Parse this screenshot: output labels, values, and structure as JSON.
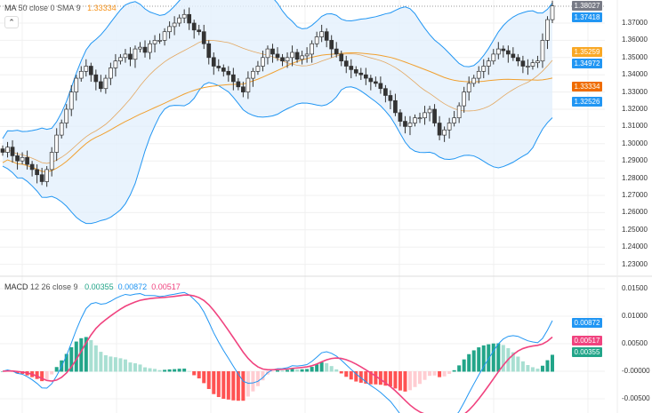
{
  "main_legend": {
    "label": "MA",
    "params": "50 close 0 SMA 9",
    "value": "1.33334",
    "value_color": "#f7931a"
  },
  "collapse_icon": "chevron-up-icon",
  "macd_legend": {
    "label": "MACD",
    "params": "12 26 close 9",
    "hist": "0.00355",
    "macd": "0.00872",
    "signal": "0.00517"
  },
  "price_axis": [
    "1.37000",
    "1.36000",
    "1.35000",
    "1.34000",
    "1.33000",
    "1.32000",
    "1.31000",
    "1.30000",
    "1.29000",
    "1.28000",
    "1.27000",
    "1.26000",
    "1.25000",
    "1.24000",
    "1.23000"
  ],
  "macd_axis": [
    "0.01500",
    "0.01000",
    "0.00500",
    "-0.00000",
    "-0.00500"
  ],
  "price_tags": [
    {
      "text": "1.38027",
      "color": "#787b86"
    },
    {
      "text": "1.37418",
      "color": "#2196f3"
    },
    {
      "text": "1.35259",
      "color": "#f9a825"
    },
    {
      "text": "1.34972",
      "color": "#2196f3"
    },
    {
      "text": "1.33334",
      "color": "#ef6c00"
    },
    {
      "text": "1.32526",
      "color": "#2196f3"
    }
  ],
  "macd_tags": [
    {
      "text": "0.00872",
      "color": "#2196f3"
    },
    {
      "text": "0.00517",
      "color": "#f0437f"
    },
    {
      "text": "0.00355",
      "color": "#22a589"
    }
  ],
  "chart_data": {
    "type": "candlestick",
    "instrument_price_range": [
      1.225,
      1.382
    ],
    "closes": [
      1.295,
      1.298,
      1.293,
      1.29,
      1.292,
      1.288,
      1.285,
      1.282,
      1.278,
      1.285,
      1.295,
      1.305,
      1.312,
      1.32,
      1.33,
      1.338,
      1.342,
      1.345,
      1.34,
      1.336,
      1.332,
      1.338,
      1.344,
      1.348,
      1.35,
      1.352,
      1.349,
      1.355,
      1.356,
      1.353,
      1.358,
      1.36,
      1.36,
      1.365,
      1.368,
      1.37,
      1.373,
      1.375,
      1.37,
      1.366,
      1.365,
      1.358,
      1.35,
      1.345,
      1.344,
      1.342,
      1.34,
      1.336,
      1.333,
      1.33,
      1.338,
      1.342,
      1.345,
      1.35,
      1.355,
      1.352,
      1.35,
      1.348,
      1.35,
      1.353,
      1.349,
      1.351,
      1.352,
      1.358,
      1.362,
      1.365,
      1.36,
      1.355,
      1.352,
      1.348,
      1.345,
      1.343,
      1.341,
      1.34,
      1.338,
      1.336,
      1.335,
      1.332,
      1.328,
      1.325,
      1.318,
      1.313,
      1.31,
      1.312,
      1.315,
      1.315,
      1.318,
      1.32,
      1.312,
      1.305,
      1.308,
      1.312,
      1.315,
      1.322,
      1.33,
      1.335,
      1.338,
      1.342,
      1.345,
      1.348,
      1.352,
      1.355,
      1.354,
      1.352,
      1.35,
      1.348,
      1.345,
      1.345,
      1.347,
      1.348,
      1.36,
      1.372,
      1.38
    ],
    "colors": {
      "up": "#ffffff",
      "down": "#333333",
      "bands": "#2196f3",
      "band_fill": "#e3f0fc",
      "basis": "#e3a862",
      "ma": "#f0a030",
      "macd": "#2196f3",
      "signal": "#f0437f",
      "hist_pos": "#22a589",
      "hist_pos_weak": "#a8dfd2",
      "hist_neg": "#ff5252",
      "hist_neg_weak": "#ffcdd2"
    }
  }
}
